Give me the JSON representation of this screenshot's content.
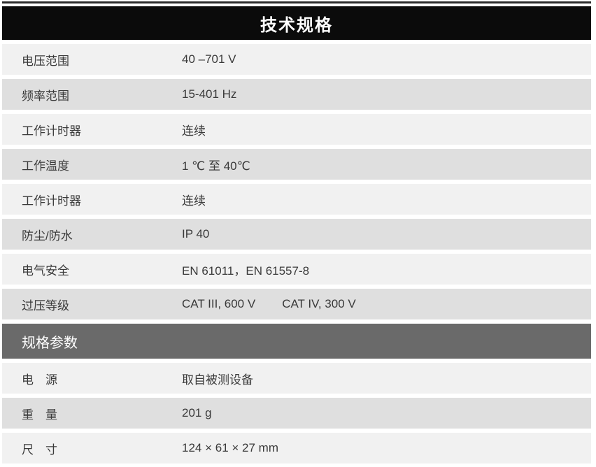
{
  "table": {
    "title": "技术规格",
    "section1": {
      "rows": [
        {
          "label": "电压范围",
          "value": "40 –701 V"
        },
        {
          "label": "频率范围",
          "value": "15-401 Hz"
        },
        {
          "label": "工作计时器",
          "value": "连续"
        },
        {
          "label": "工作温度",
          "value": "1 ℃ 至 40℃"
        },
        {
          "label": "工作计时器",
          "value": "连续"
        },
        {
          "label": "防尘/防水",
          "value": "IP 40"
        },
        {
          "label": "电气安全",
          "value": "EN 61011，EN 61557-8"
        },
        {
          "label": "过压等级",
          "value": "CAT III, 600 V",
          "value2": "CAT IV, 300 V"
        }
      ]
    },
    "section2": {
      "header": "规格参数",
      "rows": [
        {
          "label": "电　源",
          "value": "取自被测设备"
        },
        {
          "label": "重　量",
          "value": "201 g"
        },
        {
          "label": "尺　寸",
          "value": "124 × 61 × 27 mm"
        }
      ]
    }
  },
  "colors": {
    "title_bar_bg": "#0b0b0b",
    "title_text": "#ffffff",
    "section_header_bg": "#6a6a6a",
    "row_light_bg": "#f1f1f1",
    "row_dark_bg": "#dfdfdf",
    "row_text": "#3a3a3a",
    "top_rule": "#2b2b2b",
    "bottom_rule": "#b3b3b3"
  }
}
